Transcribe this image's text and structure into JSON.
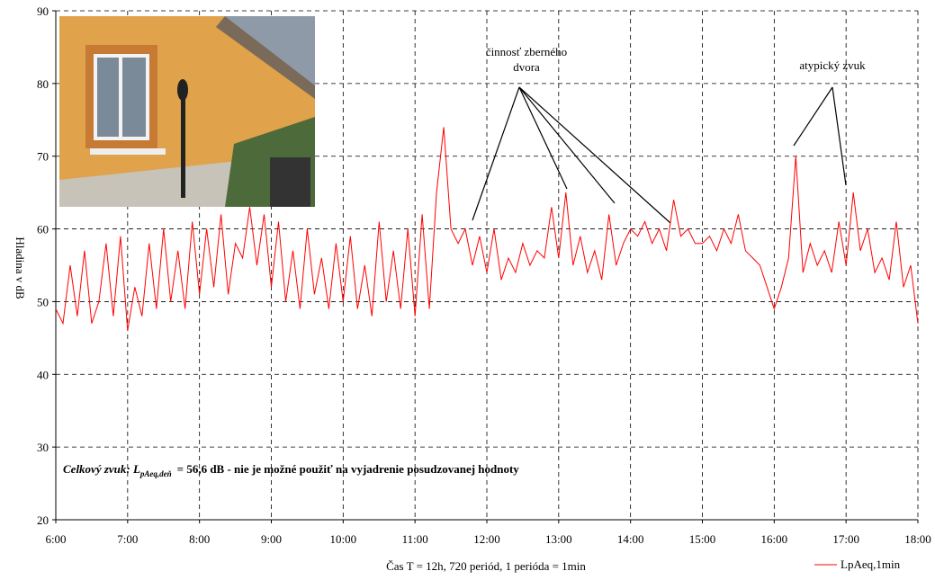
{
  "chart_data": {
    "type": "line",
    "y_label": "Hladina v dB",
    "x_label": "Čas T = 12h, 720 periód, 1 perióda = 1min",
    "annotations": [
      "činnosť zberného dvora",
      "atypický zvuk"
    ],
    "note": {
      "prefix": "Celkový zvuk: L",
      "subscript": "pAeq,deň",
      "suffix": "= 56,6 dB - nie je možné použiť na vyjadrenie posudzovanej hodnoty"
    },
    "x": [
      6,
      6.1,
      6.2,
      6.3,
      6.4,
      6.5,
      6.6,
      6.7,
      6.8,
      6.9,
      7,
      7.1,
      7.2,
      7.3,
      7.4,
      7.5,
      7.6,
      7.7,
      7.8,
      7.9,
      8,
      8.1,
      8.2,
      8.3,
      8.4,
      8.5,
      8.6,
      8.7,
      8.8,
      8.9,
      9,
      9.1,
      9.2,
      9.3,
      9.4,
      9.5,
      9.6,
      9.7,
      9.8,
      9.9,
      10,
      10.1,
      10.2,
      10.3,
      10.4,
      10.5,
      10.6,
      10.7,
      10.8,
      10.9,
      11,
      11.1,
      11.2,
      11.3,
      11.4,
      11.5,
      11.6,
      11.7,
      11.8,
      11.9,
      12,
      12.1,
      12.2,
      12.3,
      12.4,
      12.5,
      12.6,
      12.7,
      12.8,
      12.9,
      13,
      13.1,
      13.2,
      13.3,
      13.4,
      13.5,
      13.6,
      13.7,
      13.8,
      13.9,
      14,
      14.1,
      14.2,
      14.3,
      14.4,
      14.5,
      14.6,
      14.7,
      14.8,
      14.9,
      15,
      15.1,
      15.2,
      15.3,
      15.4,
      15.5,
      15.6,
      15.7,
      15.8,
      15.9,
      16,
      16.1,
      16.2,
      16.3,
      16.4,
      16.5,
      16.6,
      16.7,
      16.8,
      16.9,
      17,
      17.1,
      17.2,
      17.3,
      17.4,
      17.5,
      17.6,
      17.7,
      17.8,
      17.9,
      18
    ],
    "series": [
      {
        "name": "LpAeq,1min",
        "color": "#ff0000",
        "values": [
          49,
          47,
          55,
          48,
          57,
          47,
          50,
          58,
          48,
          59,
          46,
          52,
          48,
          58,
          49,
          60,
          50,
          57,
          49,
          61,
          51,
          60,
          52,
          62,
          51,
          58,
          56,
          63,
          55,
          62,
          52,
          61,
          50,
          57,
          49,
          60,
          51,
          56,
          49,
          58,
          50,
          59,
          49,
          55,
          48,
          61,
          50,
          57,
          49,
          60,
          48,
          62,
          49,
          65,
          74,
          60,
          58,
          60,
          55,
          59,
          54,
          60,
          53,
          56,
          54,
          58,
          55,
          57,
          56,
          63,
          56,
          65,
          55,
          59,
          54,
          57,
          53,
          62,
          55,
          58,
          60,
          59,
          61,
          58,
          60,
          57,
          64,
          59,
          60,
          58,
          58,
          59,
          57,
          60,
          58,
          62,
          57,
          56,
          55,
          52,
          49,
          52,
          56,
          70,
          54,
          58,
          55,
          57,
          54,
          61,
          55,
          65,
          57,
          60,
          54,
          56,
          53,
          61,
          52,
          55,
          47
        ]
      }
    ],
    "xlim": [
      6,
      18
    ],
    "xticks": [
      {
        "value": 6,
        "label": "6:00"
      },
      {
        "value": 7,
        "label": "7:00"
      },
      {
        "value": 8,
        "label": "8:00"
      },
      {
        "value": 9,
        "label": "9:00"
      },
      {
        "value": 10,
        "label": "10:00"
      },
      {
        "value": 11,
        "label": "11:00"
      },
      {
        "value": 12,
        "label": "12:00"
      },
      {
        "value": 13,
        "label": "13:00"
      },
      {
        "value": 14,
        "label": "14:00"
      },
      {
        "value": 15,
        "label": "15:00"
      },
      {
        "value": 16,
        "label": "16:00"
      },
      {
        "value": 17,
        "label": "17:00"
      },
      {
        "value": 18,
        "label": "18:00"
      }
    ],
    "ylim": [
      20,
      90
    ],
    "yticks": [
      20,
      30,
      40,
      50,
      60,
      70,
      80,
      90
    ],
    "grid": true
  }
}
